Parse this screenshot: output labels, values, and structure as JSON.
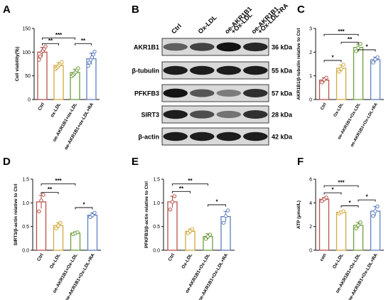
{
  "panel_letters": [
    "A",
    "B",
    "C",
    "D",
    "E",
    "F"
  ],
  "colors": {
    "ctrl": "#b5524a",
    "oxldl": "#d3a93d",
    "oe": "#6f9e3f",
    "ra": "#5f7fc0",
    "sig": "#111111"
  },
  "blot": {
    "lanes": [
      "Ctrl",
      "Ox-LDL",
      "oe-AKR1B1\n+Ox-LDL",
      "oe-AKR1B1\n+Ox-LDL+RA"
    ],
    "rows": [
      {
        "protein": "AKR1B1",
        "size": "36 kDa",
        "intensity": [
          0.55,
          0.7,
          0.95,
          0.85
        ]
      },
      {
        "protein": "β-tubulin",
        "size": "55 kDa",
        "intensity": [
          0.9,
          0.9,
          0.9,
          0.9
        ]
      },
      {
        "protein": "PFKFB3",
        "size": "57 kDa",
        "intensity": [
          0.95,
          0.6,
          0.4,
          0.8
        ]
      },
      {
        "protein": "SIRT3",
        "size": "28 kDa",
        "intensity": [
          0.9,
          0.65,
          0.45,
          0.8
        ]
      },
      {
        "protein": "β-actin",
        "size": "42 kDa",
        "intensity": [
          0.9,
          0.9,
          0.9,
          0.9
        ]
      }
    ]
  },
  "chart_data": [
    {
      "panel": "A",
      "type": "bar",
      "ylabel": "Cell viability(％)",
      "ylim": [
        0,
        150
      ],
      "yticks": [
        0,
        50,
        100,
        150
      ],
      "categories": [
        "Ctrl",
        "ox-LDL",
        "oe-AKR1B1+ox-LDL",
        "oe-AKR1B1+ox-LDL+RA"
      ],
      "values": [
        100,
        72,
        57,
        86
      ],
      "errors": [
        10,
        6,
        7,
        12
      ],
      "points": [
        [
          84,
          91,
          100,
          103,
          107,
          112
        ],
        [
          64,
          67,
          70,
          73,
          76,
          79
        ],
        [
          49,
          52,
          55,
          58,
          62,
          66
        ],
        [
          71,
          78,
          84,
          89,
          95,
          101
        ]
      ],
      "significance": [
        {
          "from": 0,
          "to": 1,
          "label": "**",
          "y": 118
        },
        {
          "from": 0,
          "to": 2,
          "label": "***",
          "y": 130
        },
        {
          "from": 2,
          "to": 3,
          "label": "**",
          "y": 118
        }
      ]
    },
    {
      "panel": "C",
      "type": "bar",
      "ylabel": "AKR1B1/β-tubulin relative to Ctrl",
      "ylim": [
        0,
        3
      ],
      "yticks": [
        0,
        1,
        2,
        3
      ],
      "categories": [
        "Ctrl",
        "Ox-LDL",
        "oe-AKR1B1+Ox-LDL",
        "oe-AKR1B1+Ox-LDL+RA"
      ],
      "values": [
        0.82,
        1.32,
        2.2,
        1.68
      ],
      "errors": [
        0.1,
        0.14,
        0.14,
        0.11
      ],
      "points": [
        [
          0.72,
          0.84,
          0.92
        ],
        [
          1.18,
          1.3,
          1.47
        ],
        [
          2.04,
          2.18,
          2.35
        ],
        [
          1.56,
          1.7,
          1.78
        ]
      ],
      "significance": [
        {
          "from": 0,
          "to": 1,
          "label": "*",
          "y": 1.65
        },
        {
          "from": 0,
          "to": 2,
          "label": "***",
          "y": 2.75
        },
        {
          "from": 1,
          "to": 2,
          "label": "**",
          "y": 2.42
        },
        {
          "from": 2,
          "to": 3,
          "label": "*",
          "y": 2.1
        }
      ]
    },
    {
      "panel": "D",
      "type": "bar",
      "ylabel": "SIRT3/β-actin relative to Ctrl",
      "ylim": [
        0,
        1.5
      ],
      "yticks": [
        0.0,
        0.5,
        1.0,
        1.5
      ],
      "categories": [
        "Ctrl",
        "Ox-LDL",
        "oe-AKR1B1+Ox-LDL",
        "oe-AKR1B1+Ox-LDL+RA"
      ],
      "values": [
        1.02,
        0.52,
        0.36,
        0.74
      ],
      "errors": [
        0.14,
        0.06,
        0.03,
        0.05
      ],
      "points": [
        [
          0.82,
          1.05,
          1.17
        ],
        [
          0.46,
          0.52,
          0.58
        ],
        [
          0.34,
          0.36,
          0.38
        ],
        [
          0.7,
          0.74,
          0.79
        ]
      ],
      "significance": [
        {
          "from": 0,
          "to": 1,
          "label": "**",
          "y": 1.22
        },
        {
          "from": 0,
          "to": 2,
          "label": "***",
          "y": 1.4
        },
        {
          "from": 2,
          "to": 3,
          "label": "*",
          "y": 0.9
        }
      ]
    },
    {
      "panel": "E",
      "type": "bar",
      "ylabel": "PFKFB3/β-actin relative to Ctrl",
      "ylim": [
        0,
        1.5
      ],
      "yticks": [
        0.0,
        0.5,
        1.0,
        1.5
      ],
      "categories": [
        "Ctrl",
        "Ox-LDL",
        "oe-AKR1B1+Ox-LDL",
        "oe-AKR1B1+Ox-LDL+RA"
      ],
      "values": [
        1.02,
        0.4,
        0.29,
        0.71
      ],
      "errors": [
        0.12,
        0.05,
        0.06,
        0.11
      ],
      "points": [
        [
          0.86,
          1.02,
          1.14
        ],
        [
          0.36,
          0.4,
          0.44
        ],
        [
          0.24,
          0.29,
          0.33
        ],
        [
          0.58,
          0.72,
          0.84
        ]
      ],
      "significance": [
        {
          "from": 0,
          "to": 1,
          "label": "**",
          "y": 1.24
        },
        {
          "from": 0,
          "to": 2,
          "label": "**",
          "y": 1.4
        },
        {
          "from": 2,
          "to": 3,
          "label": "*",
          "y": 0.96
        }
      ]
    },
    {
      "panel": "F",
      "type": "bar",
      "ylabel": "ATP (μmol/L)",
      "ylim": [
        0,
        6
      ],
      "yticks": [
        0,
        2,
        4,
        6
      ],
      "categories": [
        "con",
        "Ox-LDL",
        "oe-AKR1B1+Ox-LDL",
        "oe-AKR1B1+Ox-LDL+RA"
      ],
      "values": [
        4.3,
        3.2,
        2.1,
        3.3
      ],
      "errors": [
        0.15,
        0.1,
        0.25,
        0.4
      ],
      "points": [
        [
          4.15,
          4.3,
          4.45
        ],
        [
          3.1,
          3.2,
          3.3
        ],
        [
          1.85,
          2.1,
          2.35
        ],
        [
          2.9,
          3.3,
          3.7
        ]
      ],
      "significance": [
        {
          "from": 0,
          "to": 1,
          "label": "*",
          "y": 4.85
        },
        {
          "from": 0,
          "to": 2,
          "label": "***",
          "y": 5.45
        },
        {
          "from": 1,
          "to": 2,
          "label": "*",
          "y": 3.75
        },
        {
          "from": 2,
          "to": 3,
          "label": "*",
          "y": 4.25
        }
      ]
    }
  ]
}
